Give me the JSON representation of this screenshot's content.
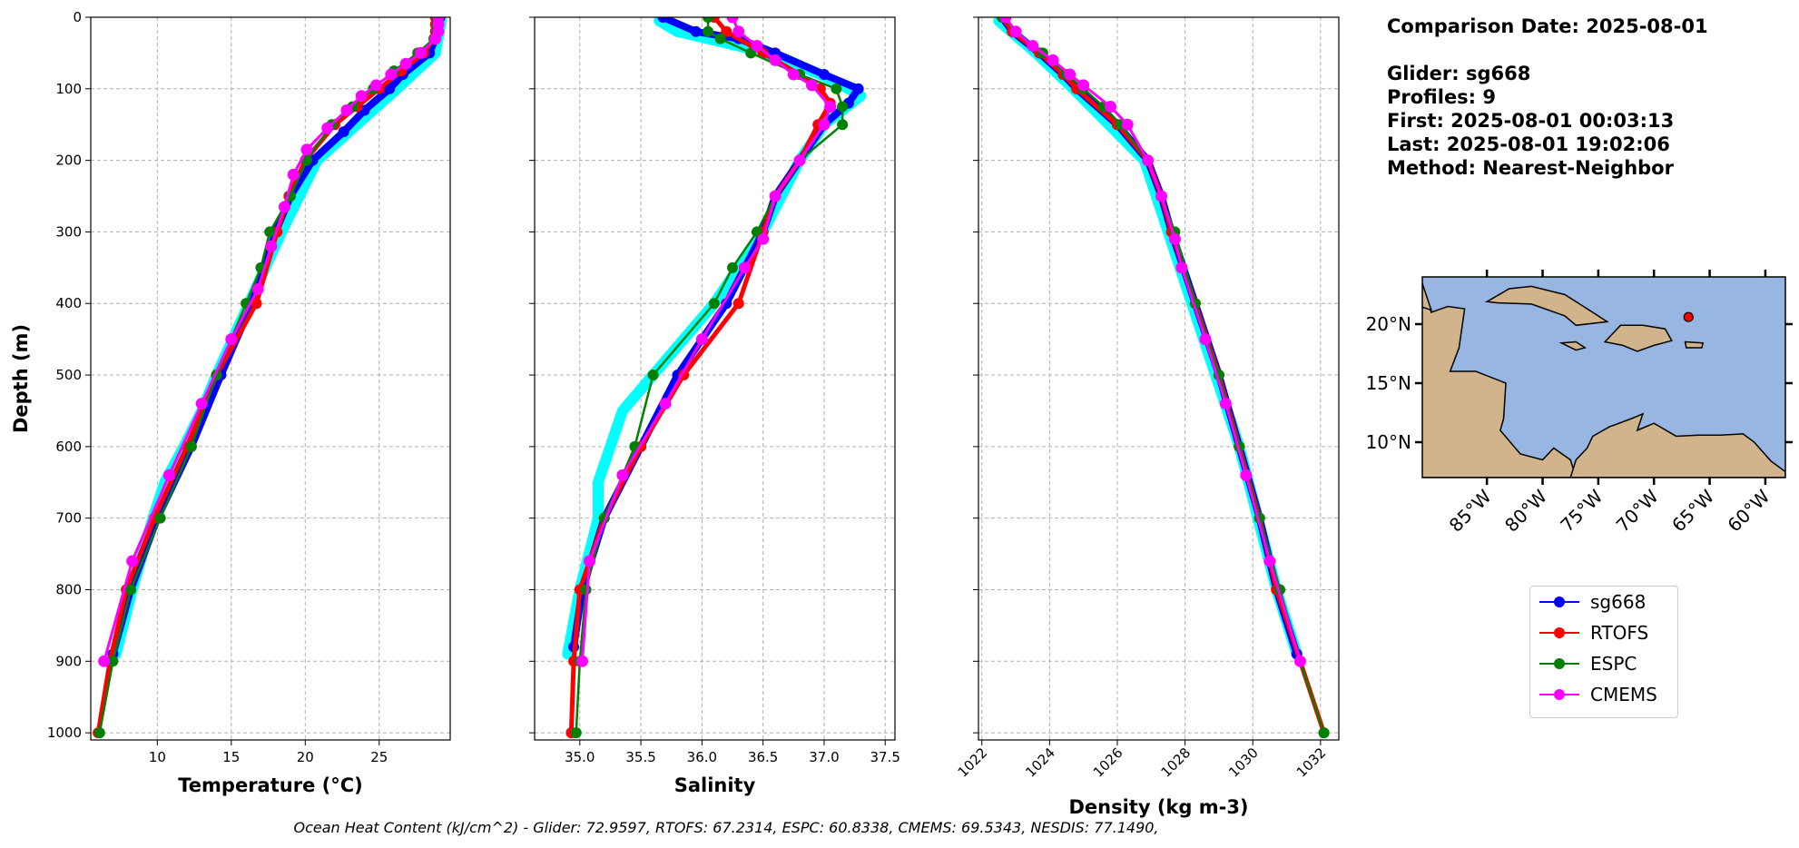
{
  "info": {
    "comparison_date": "Comparison Date: 2025-08-01",
    "glider": "Glider: sg668",
    "profiles": "Profiles: 9",
    "first": "First: 2025-08-01 00:03:13",
    "last": "Last: 2025-08-01 19:02:06",
    "method": "Method: Nearest-Neighbor"
  },
  "caption": "Ocean Heat Content (kJ/cm^2) - Glider: 72.9597,  RTOFS: 67.2314,  ESPC: 60.8338,  CMEMS: 69.5343,  NESDIS: 77.1490,",
  "colors": {
    "sg668": "#0000ff",
    "RTOFS": "#ff0000",
    "ESPC": "#008000",
    "CMEMS": "#ff00ff",
    "raw": "#00ffff",
    "ocean": "#97b6e1",
    "land": "#d2b48c"
  },
  "legend": [
    "sg668",
    "RTOFS",
    "ESPC",
    "CMEMS"
  ],
  "chart_data": [
    {
      "type": "line",
      "xlabel": "Temperature (°C)",
      "ylabel": "Depth (m)",
      "xlim": [
        5.5,
        29.8
      ],
      "ylim": [
        1010,
        0
      ],
      "xticks": [
        10,
        15,
        20,
        25
      ],
      "yticks": [
        0,
        100,
        200,
        300,
        400,
        500,
        600,
        700,
        800,
        900,
        1000
      ],
      "grid": true,
      "raw": {
        "depth": [
          5,
          50,
          100,
          150,
          200,
          300,
          400,
          500,
          550,
          600,
          650,
          700,
          800,
          890
        ],
        "values": [
          29.2,
          28.8,
          26.2,
          23.5,
          20.8,
          18.4,
          16.2,
          14.0,
          13.0,
          11.8,
          10.5,
          9.7,
          8.3,
          7.2
        ]
      },
      "series": [
        {
          "name": "sg668",
          "depth": [
            0,
            20,
            50,
            80,
            100,
            130,
            160,
            200,
            250,
            300,
            400,
            500,
            600,
            700,
            800,
            890
          ],
          "values": [
            29.1,
            29.0,
            28.4,
            26.6,
            25.7,
            24.0,
            22.6,
            20.5,
            19.0,
            18.0,
            16.4,
            14.3,
            12.3,
            10.0,
            8.2,
            7.0
          ]
        },
        {
          "name": "RTOFS",
          "depth": [
            0,
            10,
            20,
            30,
            50,
            75,
            100,
            125,
            150,
            200,
            250,
            300,
            400,
            500,
            600,
            700,
            800,
            900,
            1000
          ],
          "values": [
            28.8,
            28.8,
            28.8,
            28.7,
            28.0,
            26.5,
            25.0,
            23.5,
            22.0,
            20.0,
            18.9,
            18.1,
            16.7,
            14.0,
            12.0,
            9.8,
            7.9,
            6.8,
            6.0
          ]
        },
        {
          "name": "ESPC",
          "depth": [
            0,
            10,
            20,
            30,
            50,
            75,
            100,
            125,
            150,
            200,
            250,
            300,
            350,
            400,
            500,
            600,
            700,
            800,
            900,
            1000
          ],
          "values": [
            28.9,
            28.9,
            28.9,
            28.7,
            27.6,
            26.0,
            24.6,
            23.2,
            21.8,
            20.1,
            19.0,
            17.6,
            17.0,
            16.0,
            14.0,
            12.3,
            10.2,
            8.2,
            7.0,
            6.1
          ]
        },
        {
          "name": "CMEMS",
          "depth": [
            0,
            10,
            20,
            30,
            50,
            65,
            80,
            95,
            110,
            130,
            155,
            185,
            220,
            265,
            320,
            380,
            450,
            540,
            640,
            760,
            900
          ],
          "values": [
            29.0,
            29.0,
            29.0,
            28.8,
            27.8,
            26.8,
            25.8,
            24.8,
            23.8,
            22.8,
            21.5,
            20.1,
            19.2,
            18.6,
            17.7,
            16.8,
            15.0,
            13.0,
            10.8,
            8.3,
            6.4
          ]
        }
      ]
    },
    {
      "type": "line",
      "xlabel": "Salinity",
      "ylabel": "",
      "xlim": [
        34.63,
        37.58
      ],
      "ylim": [
        1010,
        0
      ],
      "xticks": [
        35.0,
        35.5,
        36.0,
        36.5,
        37.0,
        37.5
      ],
      "yticks": [
        0,
        100,
        200,
        300,
        400,
        500,
        600,
        700,
        800,
        900,
        1000
      ],
      "grid": true,
      "raw": {
        "depth": [
          5,
          20,
          40,
          60,
          90,
          110,
          150,
          200,
          300,
          400,
          500,
          550,
          600,
          650,
          700,
          800,
          890
        ],
        "values": [
          35.65,
          35.8,
          36.3,
          36.7,
          37.1,
          37.3,
          37.0,
          36.8,
          36.5,
          36.1,
          35.6,
          35.35,
          35.25,
          35.15,
          35.15,
          35.0,
          34.9
        ]
      },
      "series": [
        {
          "name": "sg668",
          "depth": [
            0,
            20,
            30,
            50,
            80,
            100,
            120,
            150,
            200,
            250,
            300,
            400,
            500,
            600,
            700,
            800,
            880
          ],
          "values": [
            35.68,
            35.95,
            36.3,
            36.6,
            37.0,
            37.28,
            37.2,
            37.0,
            36.8,
            36.6,
            36.5,
            36.2,
            35.8,
            35.5,
            35.2,
            35.02,
            34.95
          ]
        },
        {
          "name": "RTOFS",
          "depth": [
            0,
            20,
            50,
            80,
            100,
            120,
            150,
            200,
            250,
            300,
            400,
            500,
            600,
            700,
            800,
            900,
            1000
          ],
          "values": [
            36.1,
            36.2,
            36.5,
            36.8,
            36.97,
            37.05,
            36.95,
            36.8,
            36.6,
            36.5,
            36.3,
            35.85,
            35.5,
            35.2,
            35.0,
            34.95,
            34.93
          ]
        },
        {
          "name": "ESPC",
          "depth": [
            0,
            20,
            30,
            50,
            80,
            100,
            125,
            150,
            200,
            250,
            300,
            350,
            400,
            500,
            600,
            700,
            800,
            900,
            1000
          ],
          "values": [
            36.05,
            36.05,
            36.15,
            36.4,
            36.8,
            37.1,
            37.15,
            37.15,
            36.8,
            36.6,
            36.45,
            36.25,
            36.1,
            35.6,
            35.45,
            35.2,
            35.05,
            35.0,
            34.97
          ]
        },
        {
          "name": "CMEMS",
          "depth": [
            0,
            20,
            40,
            60,
            80,
            95,
            125,
            150,
            200,
            250,
            310,
            350,
            450,
            540,
            640,
            760,
            900
          ],
          "values": [
            36.25,
            36.3,
            36.45,
            36.6,
            36.75,
            36.9,
            37.05,
            37.0,
            36.8,
            36.6,
            36.5,
            36.35,
            36.0,
            35.7,
            35.35,
            35.08,
            35.02
          ]
        }
      ]
    },
    {
      "type": "line",
      "xlabel": "Density (kg m-3)",
      "ylabel": "",
      "xlim": [
        1021.9,
        1032.54
      ],
      "ylim": [
        1010,
        0
      ],
      "xticks": [
        1022,
        1024,
        1026,
        1028,
        1030,
        1032
      ],
      "yticks": [
        0,
        100,
        200,
        300,
        400,
        500,
        600,
        700,
        800,
        900,
        1000
      ],
      "grid": true,
      "raw": {
        "depth": [
          5,
          50,
          100,
          200,
          400,
          600,
          800,
          890
        ],
        "values": [
          1022.5,
          1023.6,
          1024.7,
          1026.8,
          1028.2,
          1029.6,
          1030.7,
          1031.3
        ]
      },
      "series": [
        {
          "name": "sg668",
          "depth": [
            0,
            20,
            50,
            80,
            100,
            150,
            200,
            250,
            300,
            400,
            500,
            600,
            700,
            800,
            890
          ],
          "values": [
            1022.6,
            1022.9,
            1023.7,
            1024.4,
            1024.8,
            1026.0,
            1026.9,
            1027.3,
            1027.6,
            1028.3,
            1029.0,
            1029.6,
            1030.2,
            1030.7,
            1031.3
          ]
        },
        {
          "name": "RTOFS",
          "depth": [
            0,
            20,
            50,
            80,
            100,
            150,
            200,
            250,
            300,
            400,
            500,
            600,
            700,
            800,
            900,
            1000
          ],
          "values": [
            1022.6,
            1022.9,
            1023.7,
            1024.4,
            1024.8,
            1026.0,
            1026.9,
            1027.3,
            1027.6,
            1028.3,
            1029.0,
            1029.6,
            1030.2,
            1030.7,
            1031.4,
            1032.1
          ]
        },
        {
          "name": "ESPC",
          "depth": [
            0,
            20,
            50,
            80,
            100,
            125,
            150,
            200,
            250,
            300,
            400,
            500,
            600,
            700,
            800,
            900,
            1000
          ],
          "values": [
            1022.6,
            1023.0,
            1023.8,
            1024.5,
            1025.0,
            1025.6,
            1026.1,
            1026.9,
            1027.3,
            1027.7,
            1028.3,
            1029.0,
            1029.6,
            1030.2,
            1030.8,
            1031.4,
            1032.1
          ]
        },
        {
          "name": "CMEMS",
          "depth": [
            0,
            20,
            40,
            60,
            80,
            95,
            125,
            150,
            200,
            250,
            310,
            350,
            450,
            540,
            640,
            760,
            900
          ],
          "values": [
            1022.7,
            1023.0,
            1023.5,
            1024.1,
            1024.6,
            1025.0,
            1025.8,
            1026.3,
            1026.9,
            1027.3,
            1027.7,
            1027.9,
            1028.6,
            1029.2,
            1029.8,
            1030.5,
            1031.4
          ]
        }
      ]
    }
  ],
  "map": {
    "lon_ticks": [
      "85°W",
      "80°W",
      "75°W",
      "70°W",
      "65°W",
      "60°W"
    ],
    "lon_values": [
      -85,
      -80,
      -75,
      -70,
      -65,
      -60
    ],
    "lat_ticks": [
      "20°N",
      "15°N",
      "10°N"
    ],
    "lat_values": [
      20,
      15,
      10
    ],
    "lon_range": [
      -90.8,
      -58.2
    ],
    "lat_range": [
      7.0,
      24.0
    ],
    "glider_position": {
      "lon": -66.9,
      "lat": 20.6
    }
  }
}
